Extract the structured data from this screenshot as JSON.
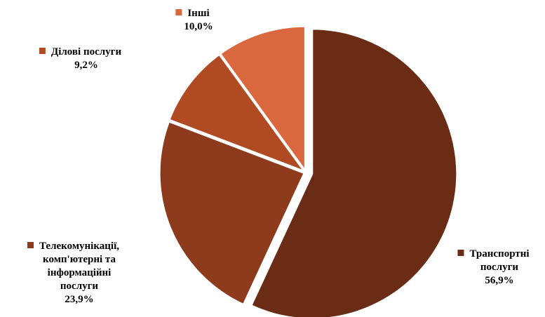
{
  "chart_data": {
    "type": "pie",
    "title": "",
    "slices": [
      {
        "label": "Транспортні послуги",
        "lines": [
          "Транспортні",
          "послуги"
        ],
        "value": 56.9,
        "value_text": "56,9%",
        "color": "#6B2C16"
      },
      {
        "label": "Телекомунікації, комп'ютерні та інформаційні послуги",
        "lines": [
          "Телекомунікації,",
          "комп'ютерні та",
          "інформаційні",
          "послуги"
        ],
        "value": 23.9,
        "value_text": "23,9%",
        "color": "#8E3A1C"
      },
      {
        "label": "Ділові послуги",
        "lines": [
          "Ділові послуги"
        ],
        "value": 9.2,
        "value_text": "9,2%",
        "color": "#B04A23"
      },
      {
        "label": "Інші",
        "lines": [
          "Інші"
        ],
        "value": 10.0,
        "value_text": "10,0%",
        "color": "#D9683F"
      }
    ]
  }
}
